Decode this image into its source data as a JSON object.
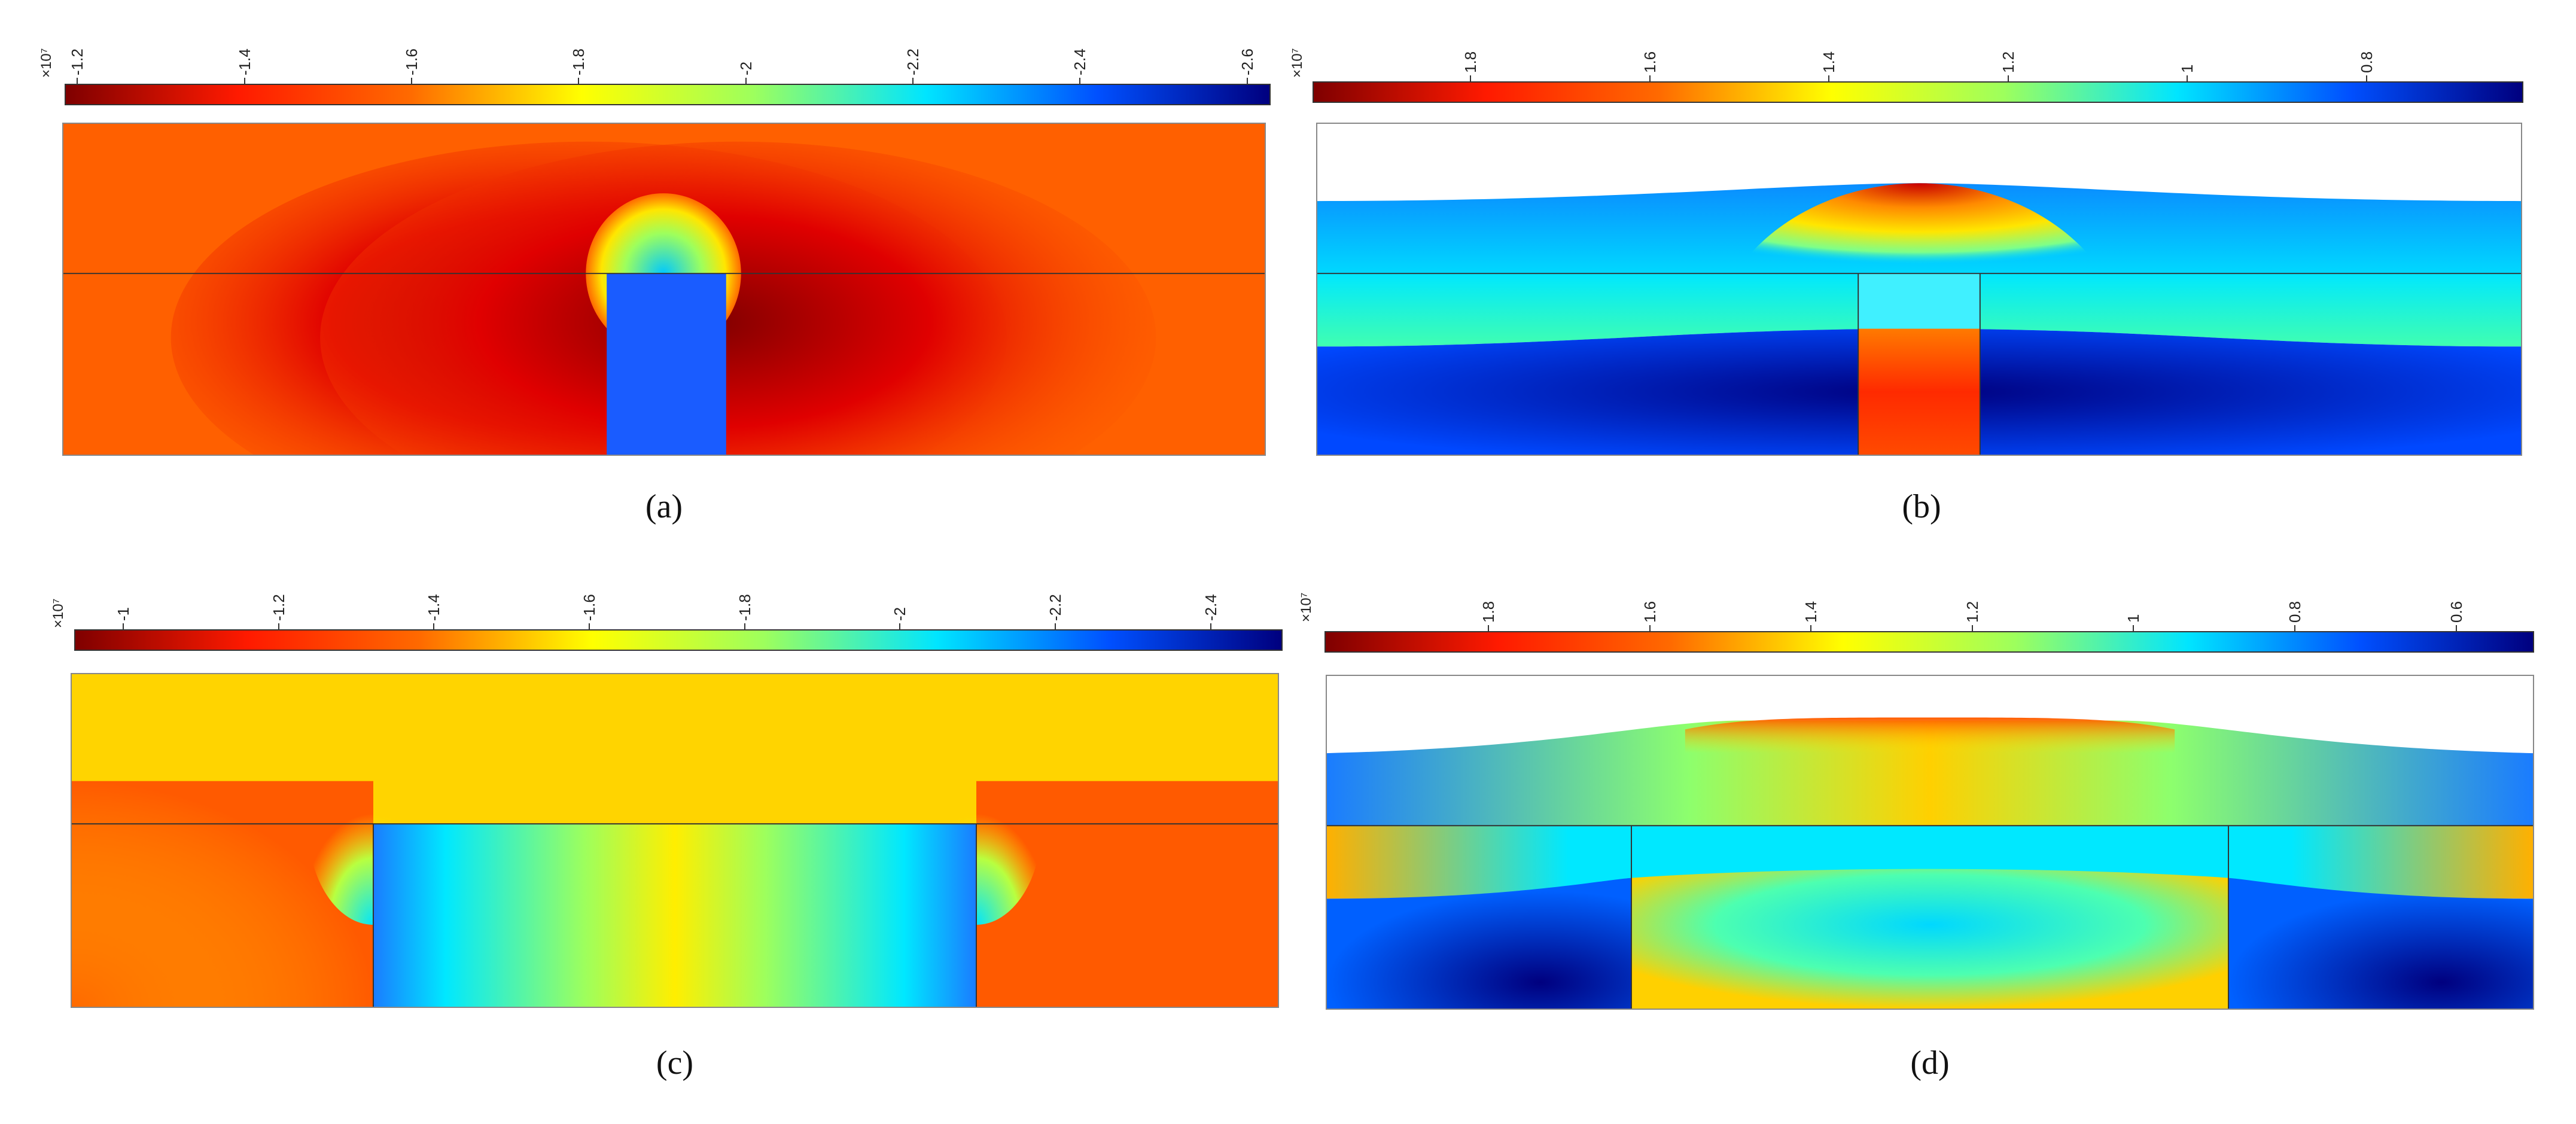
{
  "panels": [
    {
      "caption": "(a)",
      "multiplier": "×10⁷",
      "ticks": [
        "-1.2",
        "-1.4",
        "-1.6",
        "-1.8",
        "-2",
        "-2.2",
        "-2.4",
        "-2.6"
      ],
      "colormap": "jet-reversed"
    },
    {
      "caption": "(b)",
      "multiplier": "×10⁷",
      "ticks": [
        "1.8",
        "1.6",
        "1.4",
        "1.2",
        "1",
        "0.8"
      ],
      "colormap": "jet-reversed"
    },
    {
      "caption": "(c)",
      "multiplier": "×10⁷",
      "ticks": [
        "-1",
        "-1.2",
        "-1.4",
        "-1.6",
        "-1.8",
        "-2",
        "-2.2",
        "-2.4"
      ],
      "colormap": "jet-reversed"
    },
    {
      "caption": "(d)",
      "multiplier": "×10⁷",
      "ticks": [
        "1.8",
        "1.6",
        "1.4",
        "1.2",
        "1",
        "0.8",
        "0.6"
      ],
      "colormap": "jet-reversed"
    }
  ],
  "colors": {
    "darkred": "#7f0000",
    "red": "#ff1a00",
    "orange": "#ff6a00",
    "yellow": "#ffff00",
    "cyan": "#00e5ff",
    "blue": "#0050ff",
    "darkblue": "#00007f"
  }
}
